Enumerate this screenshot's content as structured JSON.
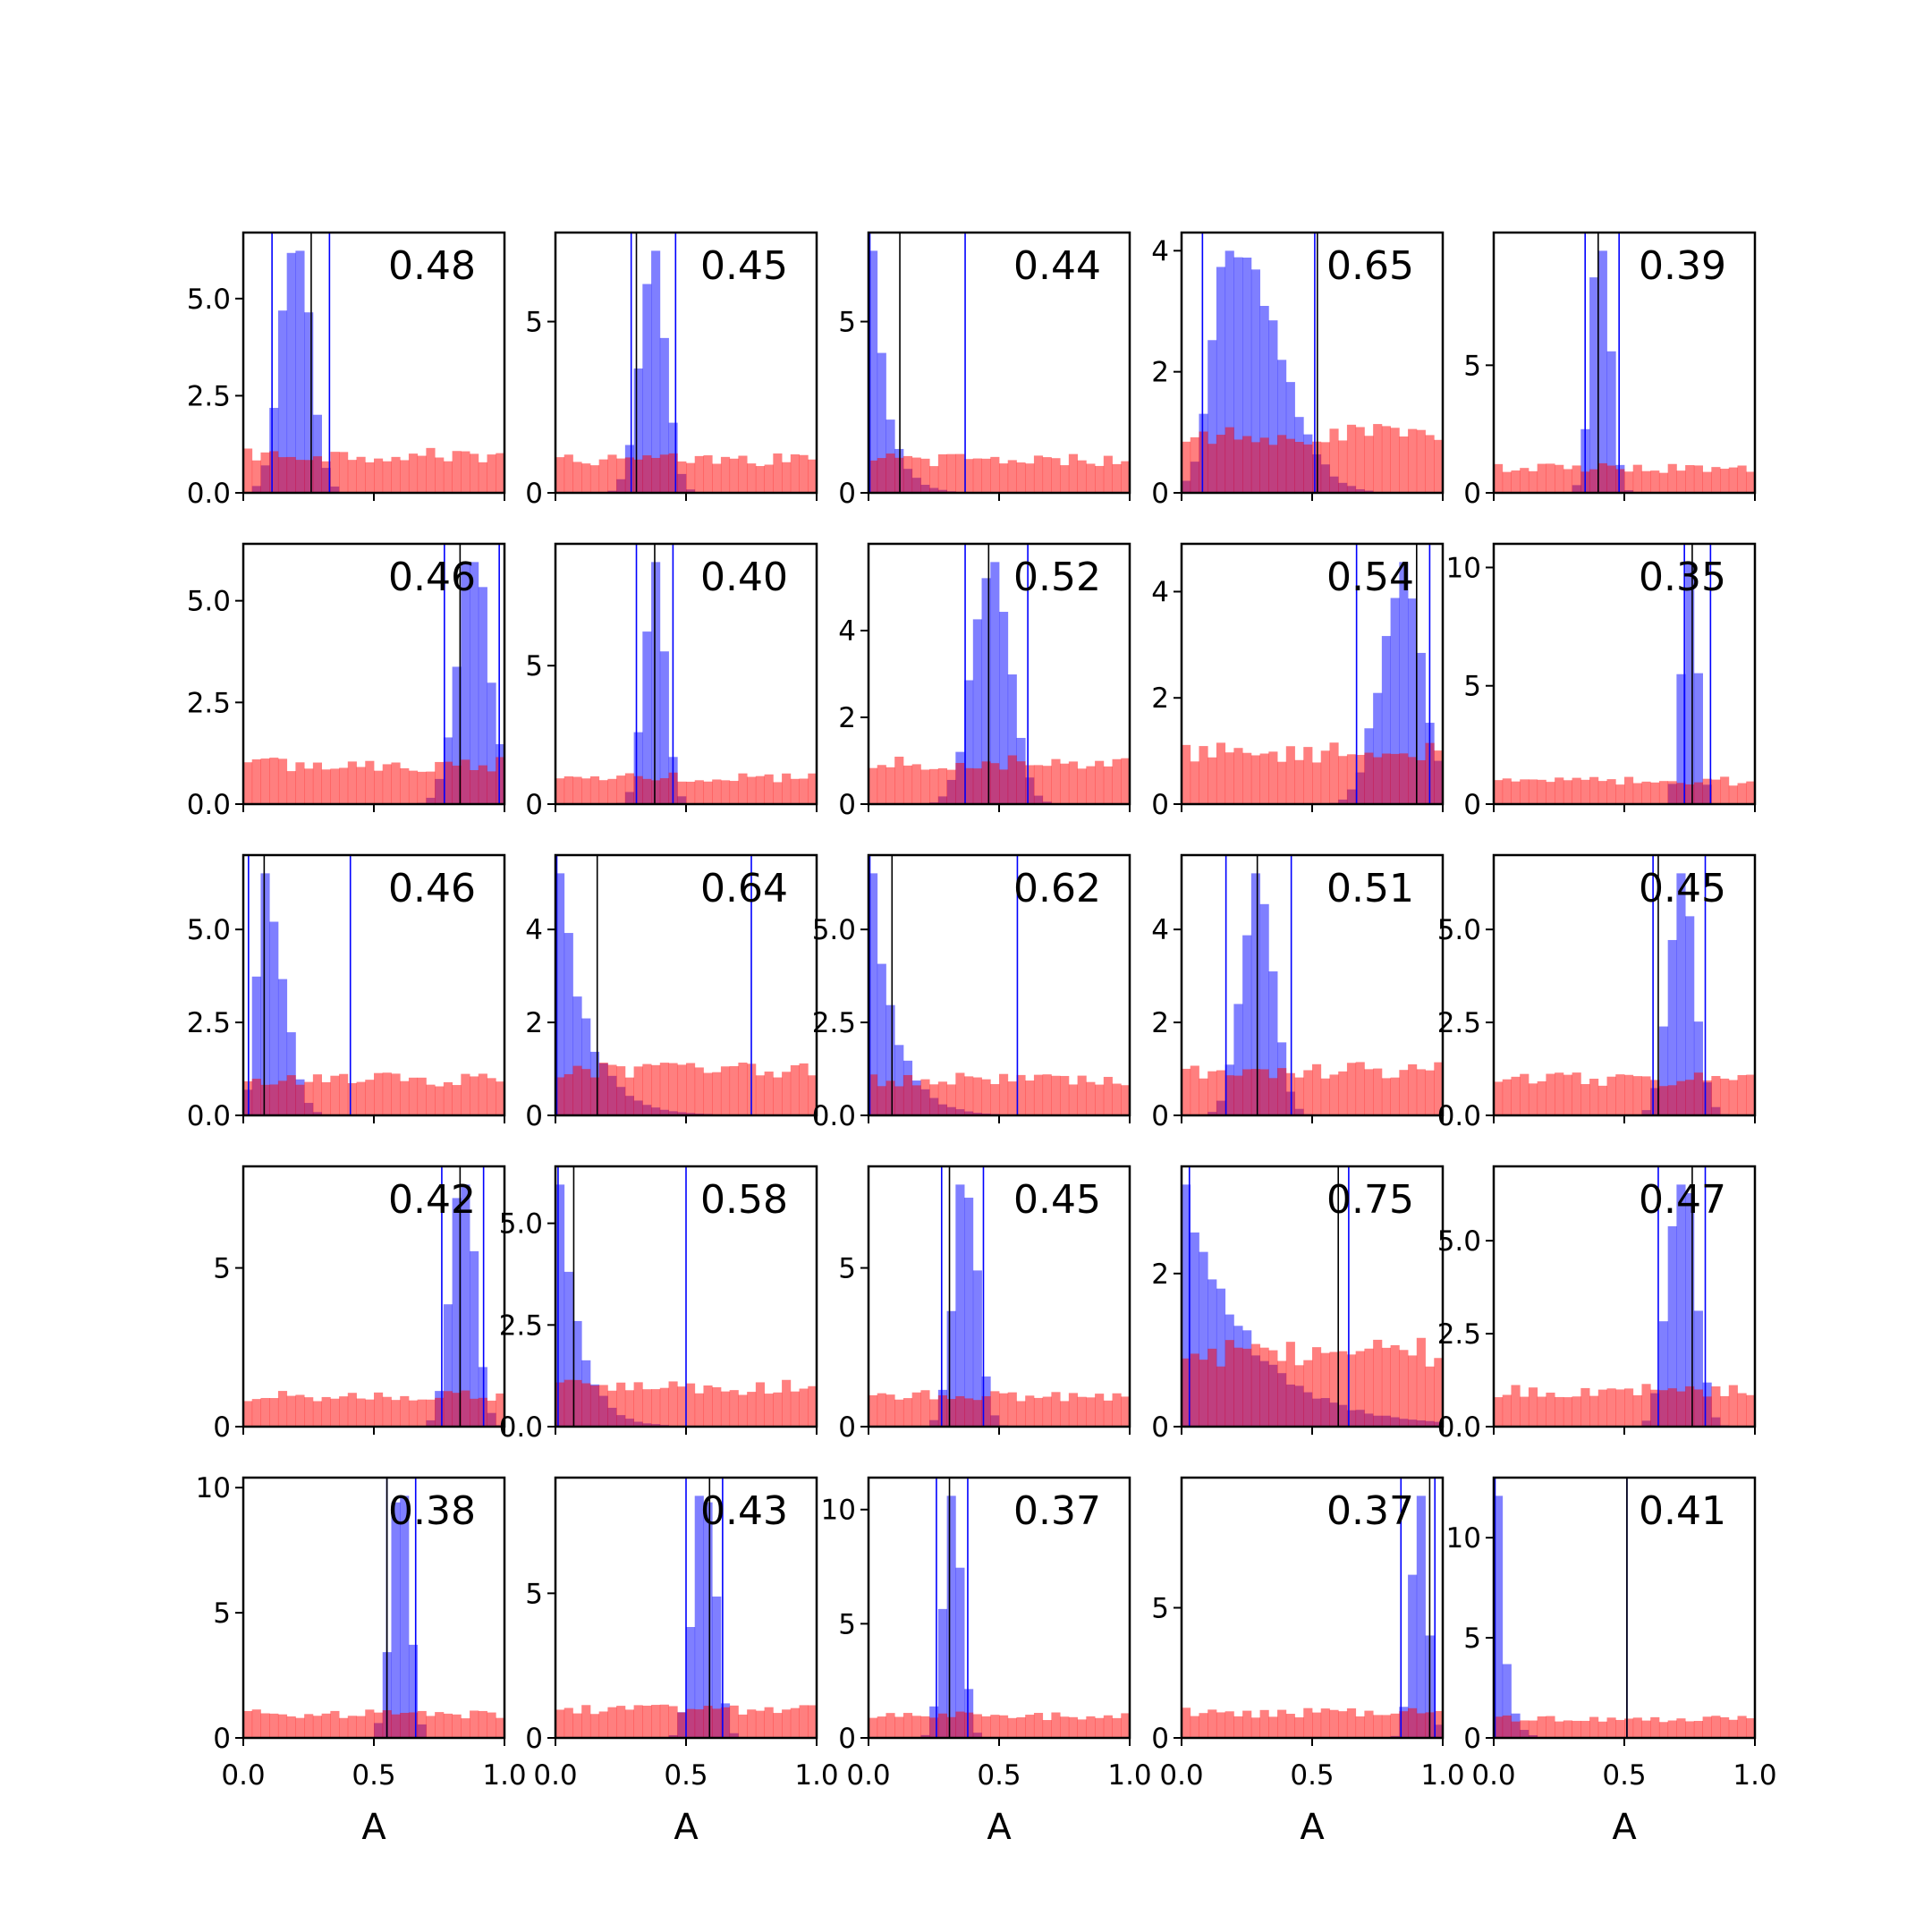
{
  "chart_data": {
    "type": "histogram-grid",
    "rows": 5,
    "cols": 5,
    "xlabel": "A",
    "xlim": [
      0,
      1
    ],
    "xticks": [
      "0.0",
      "0.5",
      "1.0"
    ],
    "colors": {
      "posterior": "#0000ff",
      "prior": "#ff0000",
      "median": "#000000",
      "interval": "#0000ff"
    },
    "panels": [
      {
        "score": "0.48",
        "shape": "gauss",
        "mu": 0.2,
        "sd": 0.055,
        "ymax": 6.7,
        "yticks": [
          {
            "v": 0,
            "t": "0.0"
          },
          {
            "v": 2.5,
            "t": "2.5"
          },
          {
            "v": 5,
            "t": "5.0"
          }
        ],
        "ci": [
          0.11,
          0.33
        ],
        "med": 0.26
      },
      {
        "score": "0.45",
        "shape": "gauss",
        "mu": 0.37,
        "sd": 0.05,
        "ymax": 7.6,
        "yticks": [
          {
            "v": 0,
            "t": "0"
          },
          {
            "v": 5,
            "t": "5"
          }
        ],
        "ci": [
          0.29,
          0.46
        ],
        "med": 0.31
      },
      {
        "score": "0.44",
        "shape": "decay",
        "tau": 0.06,
        "ymax": 7.6,
        "yticks": [
          {
            "v": 0,
            "t": "0"
          },
          {
            "v": 5,
            "t": "5"
          }
        ],
        "ci": [
          0.005,
          0.37
        ],
        "med": 0.12
      },
      {
        "score": "0.65",
        "shape": "skew",
        "mu": 0.19,
        "sl": 0.07,
        "sr": 0.17,
        "ymax": 4.3,
        "yticks": [
          {
            "v": 0,
            "t": "0"
          },
          {
            "v": 2,
            "t": "2"
          },
          {
            "v": 4,
            "t": "4"
          }
        ],
        "ci": [
          0.08,
          0.51
        ],
        "med": 0.52
      },
      {
        "score": "0.39",
        "shape": "gauss",
        "mu": 0.41,
        "sd": 0.035,
        "ymax": 10.2,
        "yticks": [
          {
            "v": 0,
            "t": "0"
          },
          {
            "v": 5,
            "t": "5"
          }
        ],
        "ci": [
          0.35,
          0.48
        ],
        "med": 0.4
      },
      {
        "score": "0.46",
        "shape": "gauss",
        "mu": 0.88,
        "sd": 0.06,
        "ymax": 6.4,
        "yticks": [
          {
            "v": 0,
            "t": "0.0"
          },
          {
            "v": 2.5,
            "t": "2.5"
          },
          {
            "v": 5,
            "t": "5.0"
          }
        ],
        "ci": [
          0.77,
          0.98
        ],
        "med": 0.83
      },
      {
        "score": "0.40",
        "shape": "gauss",
        "mu": 0.38,
        "sd": 0.04,
        "ymax": 9.4,
        "yticks": [
          {
            "v": 0,
            "t": "0"
          },
          {
            "v": 5,
            "t": "5"
          }
        ],
        "ci": [
          0.31,
          0.45
        ],
        "med": 0.38
      },
      {
        "score": "0.52",
        "shape": "gauss",
        "mu": 0.47,
        "sd": 0.07,
        "ymax": 6.0,
        "yticks": [
          {
            "v": 0,
            "t": "0"
          },
          {
            "v": 2,
            "t": "2"
          },
          {
            "v": 4,
            "t": "4"
          }
        ],
        "ci": [
          0.37,
          0.61
        ],
        "med": 0.46
      },
      {
        "score": "0.54",
        "shape": "gauss",
        "mu": 0.84,
        "sd": 0.08,
        "ymax": 4.9,
        "yticks": [
          {
            "v": 0,
            "t": "0"
          },
          {
            "v": 2,
            "t": "2"
          },
          {
            "v": 4,
            "t": "4"
          }
        ],
        "ci": [
          0.67,
          0.95
        ],
        "med": 0.9
      },
      {
        "score": "0.35",
        "shape": "gauss",
        "mu": 0.75,
        "sd": 0.03,
        "ymax": 11.0,
        "yticks": [
          {
            "v": 0,
            "t": "0"
          },
          {
            "v": 5,
            "t": "5"
          },
          {
            "v": 10,
            "t": "10"
          }
        ],
        "ci": [
          0.73,
          0.83
        ],
        "med": 0.76
      },
      {
        "score": "0.46",
        "shape": "skew",
        "mu": 0.08,
        "sl": 0.03,
        "sr": 0.07,
        "ymax": 7.0,
        "yticks": [
          {
            "v": 0,
            "t": "0.0"
          },
          {
            "v": 2.5,
            "t": "2.5"
          },
          {
            "v": 5,
            "t": "5.0"
          }
        ],
        "ci": [
          0.02,
          0.41
        ],
        "med": 0.08
      },
      {
        "score": "0.64",
        "shape": "decay",
        "tau": 0.11,
        "ymax": 5.6,
        "yticks": [
          {
            "v": 0,
            "t": "0"
          },
          {
            "v": 2,
            "t": "2"
          },
          {
            "v": 4,
            "t": "4"
          }
        ],
        "ci": [
          0.005,
          0.75
        ],
        "med": 0.16
      },
      {
        "score": "0.62",
        "shape": "decay",
        "tau": 0.09,
        "ymax": 7.0,
        "yticks": [
          {
            "v": 0,
            "t": "0.0"
          },
          {
            "v": 2.5,
            "t": "2.5"
          },
          {
            "v": 5,
            "t": "5.0"
          }
        ],
        "ci": [
          0.005,
          0.57
        ],
        "med": 0.09
      },
      {
        "score": "0.51",
        "shape": "gauss",
        "mu": 0.29,
        "sd": 0.06,
        "ymax": 5.6,
        "yticks": [
          {
            "v": 0,
            "t": "0"
          },
          {
            "v": 2,
            "t": "2"
          },
          {
            "v": 4,
            "t": "4"
          }
        ],
        "ci": [
          0.17,
          0.42
        ],
        "med": 0.29
      },
      {
        "score": "0.45",
        "shape": "gauss",
        "mu": 0.72,
        "sd": 0.05,
        "ymax": 7.0,
        "yticks": [
          {
            "v": 0,
            "t": "0.0"
          },
          {
            "v": 2.5,
            "t": "2.5"
          },
          {
            "v": 5,
            "t": "5.0"
          }
        ],
        "ci": [
          0.61,
          0.81
        ],
        "med": 0.63
      },
      {
        "score": "0.42",
        "shape": "gauss",
        "mu": 0.84,
        "sd": 0.045,
        "ymax": 8.2,
        "yticks": [
          {
            "v": 0,
            "t": "0"
          },
          {
            "v": 5,
            "t": "5"
          }
        ],
        "ci": [
          0.76,
          0.92
        ],
        "med": 0.83
      },
      {
        "score": "0.58",
        "shape": "decay",
        "tau": 0.08,
        "ymax": 6.4,
        "yticks": [
          {
            "v": 0,
            "t": "0.0"
          },
          {
            "v": 2.5,
            "t": "2.5"
          },
          {
            "v": 5,
            "t": "5.0"
          }
        ],
        "ci": [
          0.01,
          0.5
        ],
        "med": 0.07
      },
      {
        "score": "0.45",
        "shape": "gauss",
        "mu": 0.37,
        "sd": 0.045,
        "ymax": 8.2,
        "yticks": [
          {
            "v": 0,
            "t": "0"
          },
          {
            "v": 5,
            "t": "5"
          }
        ],
        "ci": [
          0.28,
          0.44
        ],
        "med": 0.31
      },
      {
        "score": "0.75",
        "shape": "decay",
        "tau": 0.25,
        "ymax": 3.4,
        "yticks": [
          {
            "v": 0,
            "t": "0"
          },
          {
            "v": 2,
            "t": "2"
          }
        ],
        "ci": [
          0.03,
          0.64
        ],
        "med": 0.6
      },
      {
        "score": "0.47",
        "shape": "gauss",
        "mu": 0.72,
        "sd": 0.05,
        "ymax": 7.0,
        "yticks": [
          {
            "v": 0,
            "t": "0.0"
          },
          {
            "v": 2.5,
            "t": "2.5"
          },
          {
            "v": 5,
            "t": "5.0"
          }
        ],
        "ci": [
          0.63,
          0.81
        ],
        "med": 0.76
      },
      {
        "score": "0.38",
        "shape": "gauss",
        "mu": 0.6,
        "sd": 0.035,
        "ymax": 10.4,
        "yticks": [
          {
            "v": 0,
            "t": "0"
          },
          {
            "v": 5,
            "t": "5"
          },
          {
            "v": 10,
            "t": "10"
          }
        ],
        "ci": [
          0.55,
          0.66
        ],
        "med": 0.55
      },
      {
        "score": "0.43",
        "shape": "gauss",
        "mu": 0.57,
        "sd": 0.04,
        "ymax": 9.0,
        "yticks": [
          {
            "v": 0,
            "t": "0"
          },
          {
            "v": 5,
            "t": "5"
          }
        ],
        "ci": [
          0.5,
          0.64
        ],
        "med": 0.59
      },
      {
        "score": "0.37",
        "shape": "gauss",
        "mu": 0.32,
        "sd": 0.035,
        "ymax": 11.4,
        "yticks": [
          {
            "v": 0,
            "t": "0"
          },
          {
            "v": 5,
            "t": "5"
          },
          {
            "v": 10,
            "t": "10"
          }
        ],
        "ci": [
          0.26,
          0.38
        ],
        "med": 0.31
      },
      {
        "score": "0.37",
        "shape": "gauss",
        "mu": 0.91,
        "sd": 0.03,
        "ymax": 10.0,
        "yticks": [
          {
            "v": 0,
            "t": "0"
          },
          {
            "v": 5,
            "t": "5"
          }
        ],
        "ci": [
          0.84,
          0.97
        ],
        "med": 0.95
      },
      {
        "score": "0.41",
        "shape": "decay",
        "tau": 0.03,
        "ymax": 13.0,
        "yticks": [
          {
            "v": 0,
            "t": "0"
          },
          {
            "v": 5,
            "t": "5"
          },
          {
            "v": 10,
            "t": "10"
          }
        ],
        "ci": [
          0.005,
          0.51
        ],
        "med": 0.51
      }
    ]
  }
}
